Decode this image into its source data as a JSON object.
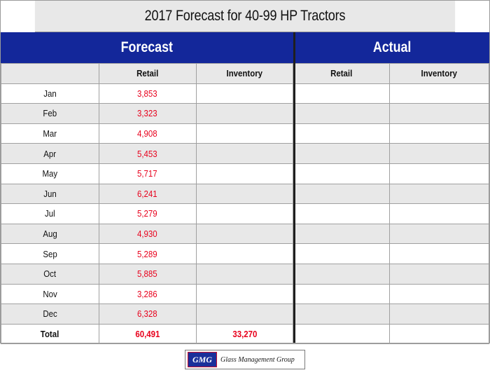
{
  "title": "2017 Forecast for 40-99 HP Tractors",
  "sections": {
    "forecast": "Forecast",
    "actual": "Actual"
  },
  "columns": [
    "",
    "Retail",
    "Inventory",
    "Retail",
    "Inventory"
  ],
  "rows": [
    {
      "month": "Jan",
      "retail": "3,853"
    },
    {
      "month": "Feb",
      "retail": "3,323"
    },
    {
      "month": "Mar",
      "retail": "4,908"
    },
    {
      "month": "Apr",
      "retail": "5,453"
    },
    {
      "month": "May",
      "retail": "5,717"
    },
    {
      "month": "Jun",
      "retail": "6,241"
    },
    {
      "month": "Jul",
      "retail": "5,279"
    },
    {
      "month": "Aug",
      "retail": "4,930"
    },
    {
      "month": "Sep",
      "retail": "5,289"
    },
    {
      "month": "Oct",
      "retail": "5,885"
    },
    {
      "month": "Nov",
      "retail": "3,286"
    },
    {
      "month": "Dec",
      "retail": "6,328"
    }
  ],
  "total": {
    "label": "Total",
    "retail": "60,491",
    "inventory": "33,270"
  },
  "logo": {
    "abbr": "GMG",
    "name": "Glass Management Group"
  },
  "colors": {
    "header_band": "#13279a",
    "forecast_value": "#e8001c",
    "row_shade": "#e8e8e8"
  }
}
